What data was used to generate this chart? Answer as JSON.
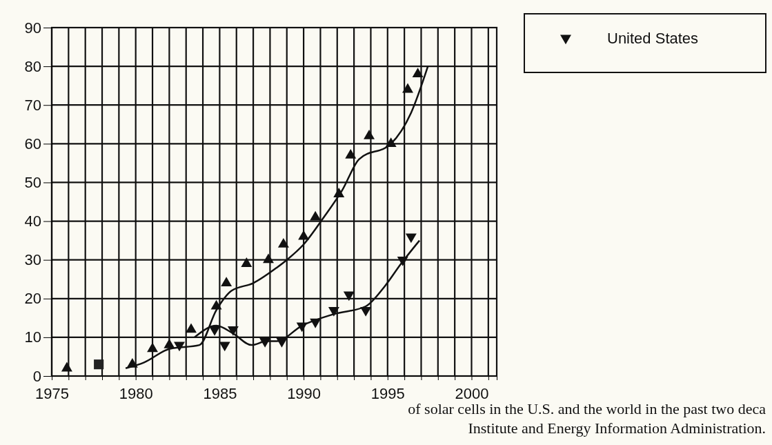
{
  "chart_data": {
    "type": "scatter",
    "xlim": [
      1975,
      2001.5
    ],
    "ylim": [
      0,
      90
    ],
    "xticks": [
      1975,
      {
        "value": 1976,
        "label": null
      },
      {
        "value": 1977,
        "label": null
      },
      {
        "value": 1978,
        "label": null
      },
      {
        "value": 1979,
        "label": null
      },
      1980,
      {
        "value": 1981,
        "label": null
      },
      {
        "value": 1982,
        "label": null
      },
      {
        "value": 1983,
        "label": null
      },
      {
        "value": 1984,
        "label": null
      },
      1985,
      {
        "value": 1986,
        "label": null
      },
      {
        "value": 1987,
        "label": null
      },
      {
        "value": 1988,
        "label": null
      },
      {
        "value": 1989,
        "label": null
      },
      1990,
      {
        "value": 1991,
        "label": null
      },
      {
        "value": 1992,
        "label": null
      },
      {
        "value": 1993,
        "label": null
      },
      {
        "value": 1994,
        "label": null
      },
      1995,
      {
        "value": 1996,
        "label": null
      },
      {
        "value": 1997,
        "label": null
      },
      {
        "value": 1998,
        "label": null
      },
      {
        "value": 1999,
        "label": null
      },
      2000,
      {
        "value": 2001,
        "label": null
      }
    ],
    "yticks": [
      0,
      10,
      20,
      30,
      40,
      50,
      60,
      70,
      80,
      90
    ],
    "grid": true,
    "legend": "top right",
    "series": [
      {
        "marker": "triangle",
        "color": "#111111",
        "x": [
          1975.9,
          1979.8,
          1981,
          1982,
          1983.3,
          1984.8,
          1985.4,
          1986.6,
          1987.9,
          1988.8,
          1990,
          1990.7,
          1992.1,
          1992.8,
          1993.9,
          1995.2,
          1996.2,
          1996.8
        ],
        "values": [
          2,
          3,
          7,
          8,
          12,
          18,
          24,
          29,
          30,
          34,
          36,
          41,
          47,
          57,
          62,
          60,
          74,
          78
        ]
      },
      {
        "marker": "square",
        "color": "#222222",
        "x": [
          1977.8
        ],
        "values": [
          3
        ]
      },
      {
        "type": "line",
        "color": "#111111",
        "x": [
          1979.4,
          1980.5,
          1982,
          1983.8,
          1984.8,
          1985.7,
          1987,
          1988.4,
          1989,
          1990,
          1991.2,
          1992.3,
          1993.3,
          1995.2,
          1996.4,
          1997.4
        ],
        "values": [
          2,
          3.5,
          7,
          8,
          17,
          22,
          24,
          28,
          30,
          34,
          41,
          48,
          56,
          60,
          68,
          80
        ]
      },
      {
        "name": "United States",
        "marker": "triangle-down",
        "color": "#111111",
        "x": [
          1982.6,
          1984.7,
          1985.3,
          1985.8,
          1987.7,
          1988.7,
          1989.9,
          1990.7,
          1991.8,
          1992.7,
          1993.7,
          1995.9,
          1996.4
        ],
        "values": [
          8,
          12,
          8,
          12,
          9,
          9,
          13,
          14,
          17,
          21,
          17,
          30,
          36
        ]
      },
      {
        "type": "line",
        "color": "#111111",
        "x": [
          1983.5,
          1984.8,
          1985.8,
          1986.9,
          1987.8,
          1988.4,
          1989.9,
          1991.8,
          1993.7,
          1994.8,
          1995.8,
          1996.9
        ],
        "values": [
          10,
          13,
          11,
          8,
          9,
          9,
          13,
          16,
          18,
          23,
          29,
          35
        ]
      }
    ],
    "annotations": [
      "of solar cells in the U.S. and the world in the past two deca",
      "Institute and Energy Information Administration."
    ]
  }
}
